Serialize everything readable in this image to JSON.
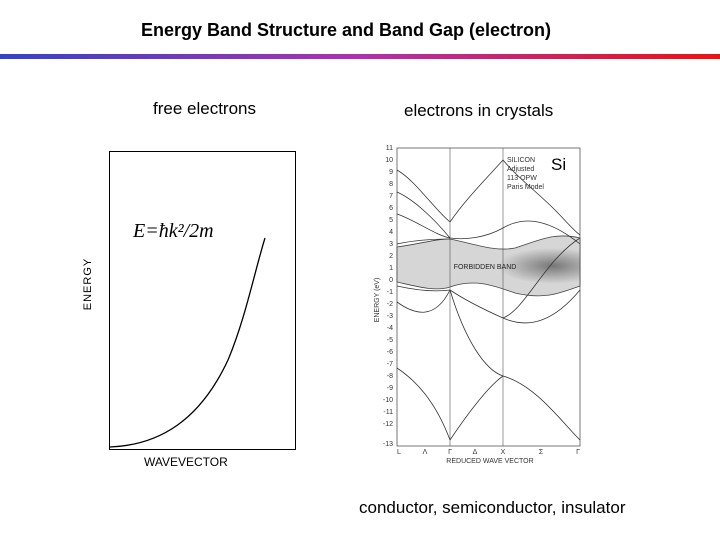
{
  "slide": {
    "title": "Energy Band Structure and Band Gap (electron)",
    "rule_gradient": [
      "#3344c8",
      "#b030b0",
      "#ee1111"
    ]
  },
  "free_panel": {
    "heading": "free electrons",
    "y_axis_label": "ENERGY",
    "x_axis_label": "WAVEVECTOR",
    "formula": "E=ħk²/2m"
  },
  "crystal_panel": {
    "heading": "electrons in crystals",
    "material_label": "Si",
    "inset_lines": [
      "SILICON",
      "Adjusted",
      "113 OPW",
      "Paris Model"
    ],
    "forbidden_band_label": "FORBIDDEN BAND",
    "y_axis_label": "ENERGY (eV)",
    "x_axis_label": "REDUCED WAVE VECTOR",
    "y_ticks": [
      "11",
      "10",
      "9",
      "8",
      "7",
      "6",
      "5",
      "4",
      "3",
      "2",
      "1",
      "0",
      "-1",
      "-2",
      "-3",
      "-4",
      "-5",
      "-6",
      "-7",
      "-8",
      "-9",
      "-10",
      "-11",
      "-12",
      "-13"
    ],
    "x_ticks": [
      "L",
      "Λ",
      "Γ",
      "Δ",
      "X",
      "Σ",
      "Γ"
    ]
  },
  "caption": "conductor, semiconductor, insulator"
}
